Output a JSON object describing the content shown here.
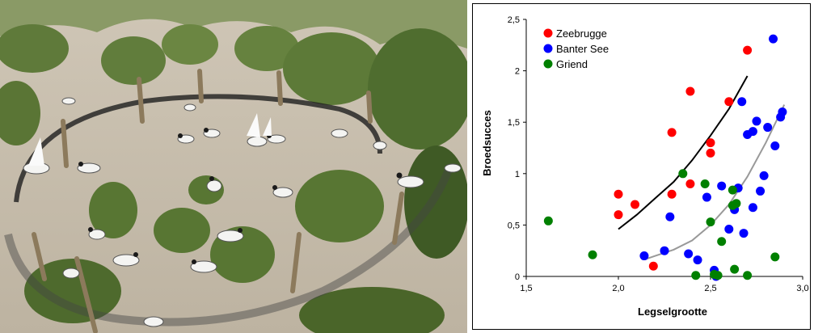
{
  "photo": {
    "content": "sandwich-terns-nesting-enclosure"
  },
  "chart_data": {
    "type": "scatter",
    "xlabel": "Legselgrootte",
    "ylabel": "Broedsucces",
    "xlim": [
      1.5,
      3.0
    ],
    "ylim": [
      0,
      2.5
    ],
    "xticks": [
      1.5,
      2.0,
      2.5,
      3.0
    ],
    "yticks": [
      0,
      0.5,
      1,
      1.5,
      2,
      2.5
    ],
    "xtick_labels": [
      "1,5",
      "2,0",
      "2,5",
      "3,0"
    ],
    "ytick_labels": [
      "0",
      "0,5",
      "1",
      "1,5",
      "2",
      "2,5"
    ],
    "grid": false,
    "legend": "top-left",
    "series": [
      {
        "name": "Zeebrugge",
        "color": "#ff0000",
        "points": [
          [
            2.0,
            0.8
          ],
          [
            2.0,
            0.6
          ],
          [
            2.09,
            0.7
          ],
          [
            2.19,
            0.1
          ],
          [
            2.29,
            1.4
          ],
          [
            2.29,
            0.8
          ],
          [
            2.39,
            1.8
          ],
          [
            2.39,
            0.9
          ],
          [
            2.5,
            1.3
          ],
          [
            2.5,
            1.2
          ],
          [
            2.6,
            1.7
          ],
          [
            2.7,
            2.2
          ]
        ]
      },
      {
        "name": "Banter See",
        "color": "#0000ff",
        "points": [
          [
            2.14,
            0.2
          ],
          [
            2.25,
            0.25
          ],
          [
            2.28,
            0.58
          ],
          [
            2.38,
            0.22
          ],
          [
            2.43,
            0.16
          ],
          [
            2.48,
            0.77
          ],
          [
            2.52,
            0.06
          ],
          [
            2.53,
            0.0
          ],
          [
            2.56,
            0.88
          ],
          [
            2.6,
            0.46
          ],
          [
            2.63,
            0.65
          ],
          [
            2.65,
            0.86
          ],
          [
            2.67,
            1.7
          ],
          [
            2.68,
            0.42
          ],
          [
            2.7,
            1.38
          ],
          [
            2.73,
            1.41
          ],
          [
            2.73,
            0.67
          ],
          [
            2.75,
            1.51
          ],
          [
            2.77,
            0.83
          ],
          [
            2.79,
            0.98
          ],
          [
            2.81,
            1.45
          ],
          [
            2.84,
            2.31
          ],
          [
            2.85,
            1.27
          ],
          [
            2.88,
            1.55
          ],
          [
            2.89,
            1.6
          ]
        ]
      },
      {
        "name": "Griend",
        "color": "#008000",
        "points": [
          [
            1.62,
            0.54
          ],
          [
            1.86,
            0.21
          ],
          [
            2.35,
            1.0
          ],
          [
            2.42,
            0.01
          ],
          [
            2.47,
            0.9
          ],
          [
            2.5,
            0.53
          ],
          [
            2.52,
            0.02
          ],
          [
            2.54,
            0.01
          ],
          [
            2.56,
            0.34
          ],
          [
            2.62,
            0.84
          ],
          [
            2.62,
            0.69
          ],
          [
            2.64,
            0.71
          ],
          [
            2.63,
            0.07
          ],
          [
            2.7,
            0.01
          ],
          [
            2.85,
            0.19
          ]
        ]
      }
    ],
    "trendlines": [
      {
        "series": "Zeebrugge",
        "color": "#000000",
        "x_range": [
          2.0,
          2.7
        ],
        "points": [
          [
            2.0,
            0.46
          ],
          [
            2.1,
            0.6
          ],
          [
            2.2,
            0.76
          ],
          [
            2.3,
            0.92
          ],
          [
            2.4,
            1.13
          ],
          [
            2.5,
            1.37
          ],
          [
            2.6,
            1.63
          ],
          [
            2.7,
            1.95
          ]
        ]
      },
      {
        "series": "Banter See",
        "color": "#999999",
        "x_range": [
          2.15,
          2.9
        ],
        "points": [
          [
            2.15,
            0.17
          ],
          [
            2.2,
            0.2
          ],
          [
            2.3,
            0.26
          ],
          [
            2.4,
            0.35
          ],
          [
            2.5,
            0.5
          ],
          [
            2.6,
            0.7
          ],
          [
            2.7,
            0.97
          ],
          [
            2.8,
            1.3
          ],
          [
            2.9,
            1.67
          ]
        ]
      }
    ]
  }
}
